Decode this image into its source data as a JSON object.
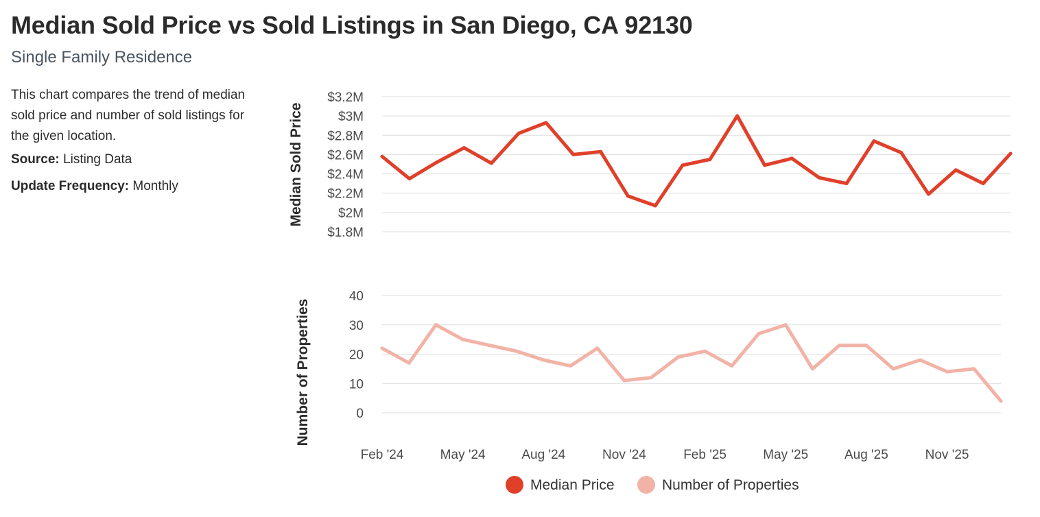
{
  "header": {
    "title": "Median Sold Price vs Sold Listings in San Diego, CA 92130",
    "subtitle": "Single Family Residence"
  },
  "info": {
    "description": "This chart compares the trend of median sold price and number of sold listings for the given location.",
    "source_label": "Source:",
    "source_value": "Listing Data",
    "frequency_label": "Update Frequency:",
    "frequency_value": "Monthly"
  },
  "colors": {
    "price": "#e0402a",
    "count": "#f2b3a7",
    "grid": "#dddddd"
  },
  "chart_data": [
    {
      "type": "line",
      "ylabel": "Median Sold Price",
      "ylim": [
        1800000,
        3200000
      ],
      "yticks": [
        1800000,
        2000000,
        2200000,
        2400000,
        2600000,
        2800000,
        3000000,
        3200000
      ],
      "ytick_labels": [
        "$1.8M",
        "$2M",
        "$2.2M",
        "$2.4M",
        "$2.6M",
        "$2.8M",
        "$3M",
        "$3.2M"
      ],
      "x": [
        "Feb '24",
        "Mar '24",
        "Apr '24",
        "May '24",
        "Jun '24",
        "Jul '24",
        "Aug '24",
        "Sep '24",
        "Oct '24",
        "Nov '24",
        "Dec '24",
        "Jan '25",
        "Feb '25",
        "Mar '25",
        "Apr '25",
        "May '25",
        "Jun '25",
        "Jul '25",
        "Aug '25",
        "Sep '25",
        "Oct '25",
        "Nov '25",
        "Dec '25",
        "Jan '26"
      ],
      "series": [
        {
          "name": "Median Price",
          "values": [
            2580000,
            2350000,
            2520000,
            2670000,
            2510000,
            2820000,
            2930000,
            2600000,
            2630000,
            2170000,
            2070000,
            2490000,
            2550000,
            3000000,
            2490000,
            2560000,
            2360000,
            2300000,
            2740000,
            2620000,
            2190000,
            2440000,
            2300000,
            2610000
          ]
        }
      ]
    },
    {
      "type": "line",
      "ylabel": "Number of Properties",
      "ylim": [
        0,
        40
      ],
      "yticks": [
        0,
        10,
        20,
        30,
        40
      ],
      "ytick_labels": [
        "0",
        "10",
        "20",
        "30",
        "40"
      ],
      "x": [
        "Feb '24",
        "Mar '24",
        "Apr '24",
        "May '24",
        "Jun '24",
        "Jul '24",
        "Aug '24",
        "Sep '24",
        "Oct '24",
        "Nov '24",
        "Dec '24",
        "Jan '25",
        "Feb '25",
        "Mar '25",
        "Apr '25",
        "May '25",
        "Jun '25",
        "Jul '25",
        "Aug '25",
        "Sep '25",
        "Oct '25",
        "Nov '25",
        "Dec '25",
        "Jan '26"
      ],
      "xtick_labels": [
        "Feb '24",
        "May '24",
        "Aug '24",
        "Nov '24",
        "Feb '25",
        "May '25",
        "Aug '25",
        "Nov '25"
      ],
      "series": [
        {
          "name": "Number of Properties",
          "values": [
            22,
            17,
            30,
            25,
            23,
            21,
            18,
            16,
            22,
            11,
            12,
            19,
            21,
            16,
            27,
            30,
            15,
            23,
            23,
            15,
            18,
            14,
            15,
            4
          ]
        }
      ]
    }
  ],
  "legend": [
    {
      "label": "Median Price"
    },
    {
      "label": "Number of Properties"
    }
  ]
}
